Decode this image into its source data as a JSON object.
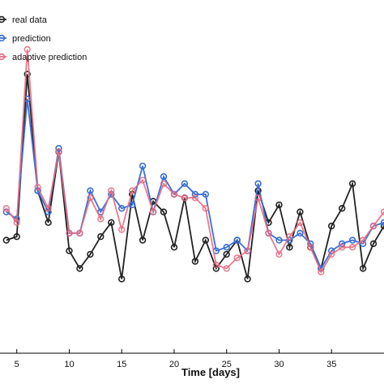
{
  "chart_data": {
    "type": "line",
    "title": "",
    "xlabel": "Time [days]",
    "ylabel": "",
    "xlim": [
      3.4,
      40
    ],
    "ylim": [
      0,
      100
    ],
    "x_ticks": [
      5,
      10,
      15,
      20,
      25,
      30,
      35
    ],
    "grid": false,
    "legend_position": "top-left",
    "x": [
      4,
      5,
      6,
      7,
      8,
      9,
      10,
      11,
      12,
      13,
      14,
      15,
      16,
      17,
      18,
      19,
      20,
      21,
      22,
      23,
      24,
      25,
      26,
      27,
      28,
      29,
      30,
      31,
      32,
      33,
      34,
      35,
      36,
      37,
      38,
      39,
      40
    ],
    "series": [
      {
        "name": "real data",
        "color": "#222222",
        "values": [
          32,
          33,
          79,
          46,
          37,
          57,
          29,
          24,
          28,
          33,
          37,
          21,
          45,
          32,
          43,
          40,
          30,
          44,
          26,
          32,
          24,
          28,
          32,
          21,
          46,
          37,
          42,
          30,
          40,
          30,
          24,
          36,
          41,
          48,
          24,
          31,
          36
        ]
      },
      {
        "name": "prediction",
        "color": "#3a6fd8",
        "values": [
          40,
          38,
          72,
          46,
          40,
          58,
          34,
          34,
          46,
          40,
          45,
          41,
          42,
          53,
          40,
          50,
          45,
          48,
          45,
          45,
          29,
          30,
          32,
          29,
          48,
          34,
          32,
          32,
          34,
          31,
          24,
          29,
          31,
          32,
          31,
          36,
          37
        ]
      },
      {
        "name": "adaptive prediction",
        "color": "#e56b80",
        "values": [
          41,
          37,
          86,
          47,
          41,
          57,
          34,
          34,
          44,
          38,
          46,
          35,
          46,
          49,
          40,
          48,
          45,
          44,
          44,
          41,
          25,
          24,
          27,
          29,
          44,
          34,
          28,
          33,
          37,
          30,
          23,
          28,
          30,
          30,
          32,
          36,
          40
        ]
      }
    ]
  }
}
